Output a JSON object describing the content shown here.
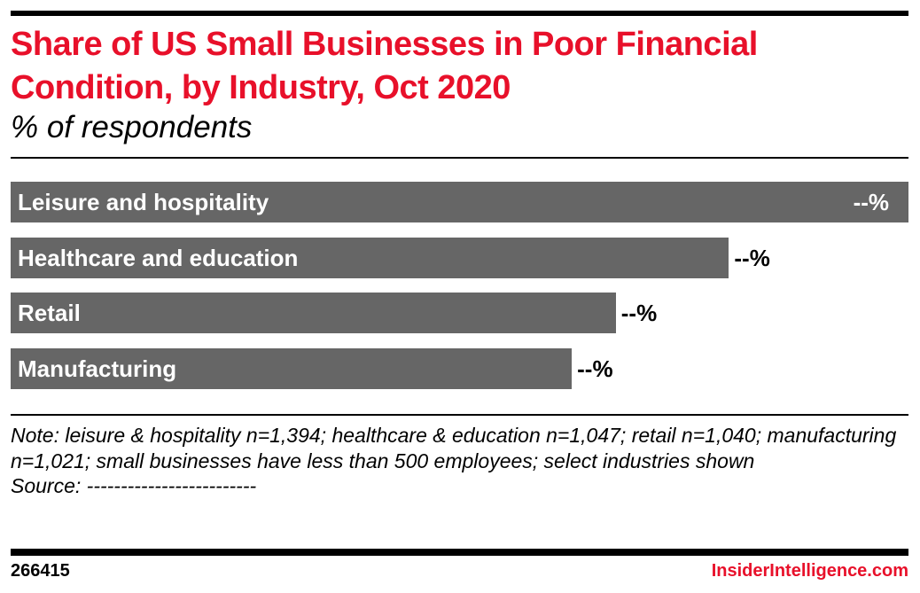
{
  "colors": {
    "title": "#e8102a",
    "bar": "#666666",
    "brand": "#e8102a"
  },
  "chart_data": {
    "type": "bar",
    "orientation": "horizontal",
    "title": "Share of US Small Businesses in Poor Financial Condition, by Industry, Oct 2020",
    "subtitle": "% of respondents",
    "categories": [
      "Leisure and hospitality",
      "Healthcare and education",
      "Retail",
      "Manufacturing"
    ],
    "values_relative_to_max": [
      100,
      80,
      67.4,
      62.5
    ],
    "value_labels": [
      "--%",
      "--%",
      "--%",
      "--%"
    ],
    "grid": false
  },
  "notes": {
    "note": "Note: leisure & hospitality n=1,394; healthcare & education n=1,047; retail n=1,040; manufacturing n=1,021; small businesses have less than 500 employees; select industries shown",
    "source": "Source: -------------------------"
  },
  "footer": {
    "chart_id": "266415",
    "brand": "InsiderIntelligence.com"
  }
}
